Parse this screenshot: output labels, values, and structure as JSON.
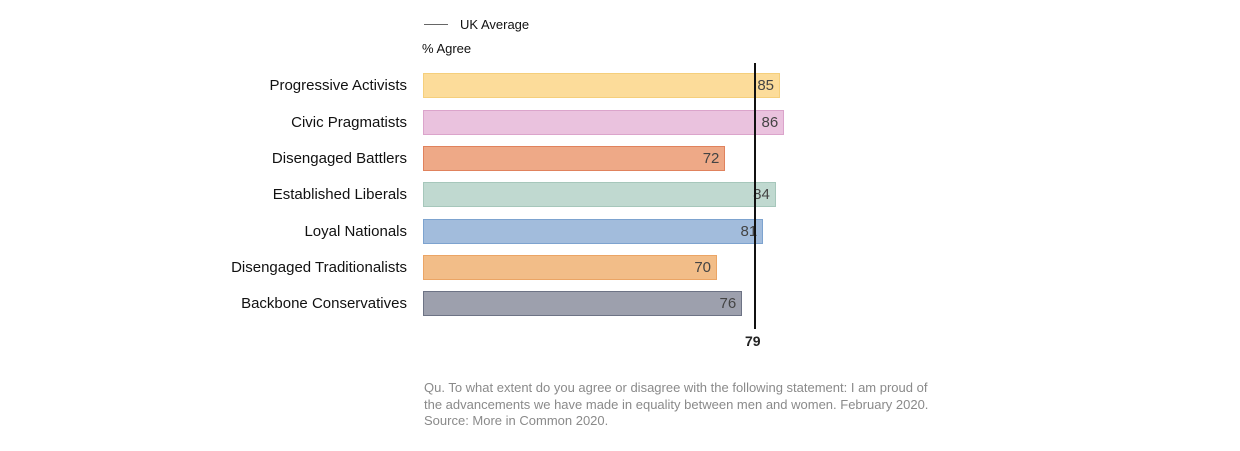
{
  "legend": {
    "uk_average_label": "UK Average"
  },
  "axis": {
    "unit_label": "% Agree"
  },
  "uk_average": {
    "value": "79"
  },
  "rows": [
    {
      "label": "Progressive Activists",
      "value": "85"
    },
    {
      "label": "Civic Pragmatists",
      "value": "86"
    },
    {
      "label": "Disengaged Battlers",
      "value": "72"
    },
    {
      "label": "Established Liberals",
      "value": "84"
    },
    {
      "label": "Loyal Nationals",
      "value": "81"
    },
    {
      "label": "Disengaged Traditionalists",
      "value": "70"
    },
    {
      "label": "Backbone Conservatives",
      "value": "76"
    }
  ],
  "footnote": {
    "line1": "Qu. To what extent do you agree or disagree with the following statement: I am proud of",
    "line2": "the advancements we have made in equality between men and women. February 2020.",
    "line3": "Source: More in Common 2020."
  },
  "colors": {
    "progressive_activists": "#fcdc9a",
    "civic_pragmatists": "#eac2de",
    "disengaged_battlers": "#eea987",
    "established_liberals": "#c0d9d0",
    "loyal_nationals": "#a2bcdc",
    "disengaged_traditionalists": "#f2bd88",
    "backbone_conservatives": "#9da0ad",
    "uk_average_line": "#111111"
  },
  "chart_data": {
    "type": "bar",
    "orientation": "horizontal",
    "categories": [
      "Progressive Activists",
      "Civic Pragmatists",
      "Disengaged Battlers",
      "Established Liberals",
      "Loyal Nationals",
      "Disengaged Traditionalists",
      "Backbone Conservatives"
    ],
    "values": [
      85,
      86,
      72,
      84,
      81,
      70,
      76
    ],
    "colors": [
      "#fcdc9a",
      "#eac2de",
      "#eea987",
      "#c0d9d0",
      "#a2bcdc",
      "#f2bd88",
      "#9da0ad"
    ],
    "reference_line": {
      "label": "UK Average",
      "value": 79
    },
    "title": "",
    "xlabel": "% Agree",
    "ylabel": "",
    "xlim": [
      0,
      100
    ],
    "grid": false,
    "legend_position": "top",
    "data_labels": true,
    "annotations": [
      "Qu. To what extent do you agree or disagree with the following statement: I am proud of the advancements we have made in equality between men and women. February 2020.",
      "Source: More in Common 2020."
    ]
  }
}
